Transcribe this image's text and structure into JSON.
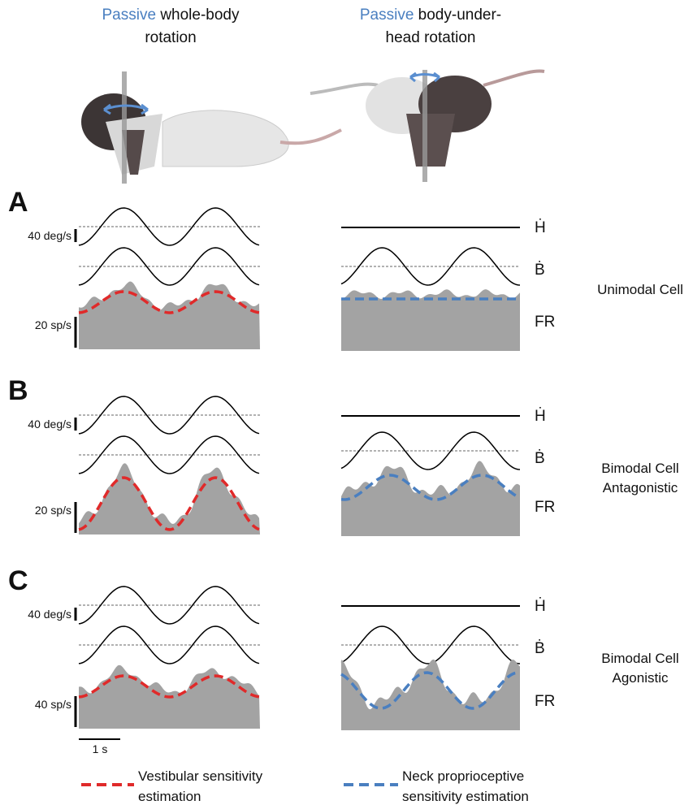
{
  "columns": [
    {
      "highlight": "Passive",
      "line1": "whole-body",
      "line2": "rotation"
    },
    {
      "highlight": "Passive",
      "line1": "body-under-",
      "line2": "head rotation"
    }
  ],
  "panels": [
    {
      "letter": "A",
      "velocity_scale": "40 deg/s",
      "rate_scale": "20 sp/s",
      "cell_type": [
        "Unimodal Cell"
      ]
    },
    {
      "letter": "B",
      "velocity_scale": "40 deg/s",
      "rate_scale": "20 sp/s",
      "cell_type": [
        "Bimodal Cell",
        "Antagonistic"
      ]
    },
    {
      "letter": "C",
      "velocity_scale": "40 deg/s",
      "rate_scale": "40 sp/s",
      "cell_type": [
        "Bimodal Cell",
        "Agonistic"
      ]
    }
  ],
  "row_labels": {
    "head": "Ḣ",
    "body": "Ḃ",
    "firing_rate": "FR"
  },
  "time_scale": "1 s",
  "legend": [
    {
      "line1": "Vestibular sensitivity",
      "line2": "estimation"
    },
    {
      "line1": "Neck proprioceptive",
      "line2": "sensitivity estimation"
    }
  ]
}
